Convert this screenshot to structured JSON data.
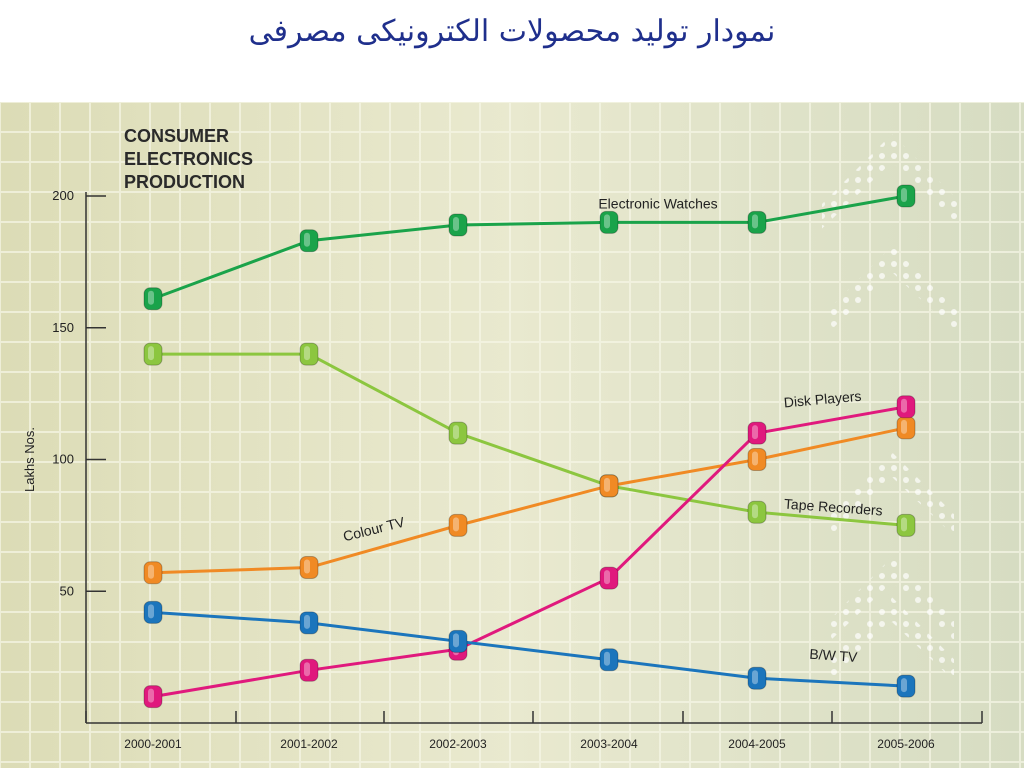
{
  "slide": {
    "title": "نمودار تولید محصولات الکترونیکی مصرفی"
  },
  "chart_data": {
    "type": "line",
    "title_lines": [
      "CONSUMER",
      "ELECTRONICS",
      "PRODUCTION"
    ],
    "xlabel": "",
    "ylabel": "Lakhs Nos.",
    "categories": [
      "2000-2001",
      "2001-2002",
      "2002-2003",
      "2003-2004",
      "2004-2005",
      "2005-2006"
    ],
    "yticks": [
      50,
      100,
      150,
      200
    ],
    "ylim": [
      0,
      200
    ],
    "grid": true,
    "legend": "inline labels",
    "series": [
      {
        "name": "Electronic Watches",
        "color": "#1aa34a",
        "values": [
          161,
          183,
          189,
          190,
          190,
          200
        ]
      },
      {
        "name": "Tape Recorders",
        "color": "#8cc63f",
        "values": [
          140,
          140,
          110,
          90,
          80,
          75
        ]
      },
      {
        "name": "Colour TV",
        "color": "#f08a24",
        "values": [
          57,
          59,
          75,
          90,
          100,
          112
        ]
      },
      {
        "name": "Disk Players",
        "color": "#e0197d",
        "values": [
          10,
          20,
          28,
          55,
          110,
          120
        ]
      },
      {
        "name": "B/W TV",
        "color": "#1b75bc",
        "values": [
          42,
          38,
          31,
          24,
          17,
          14
        ]
      }
    ]
  }
}
